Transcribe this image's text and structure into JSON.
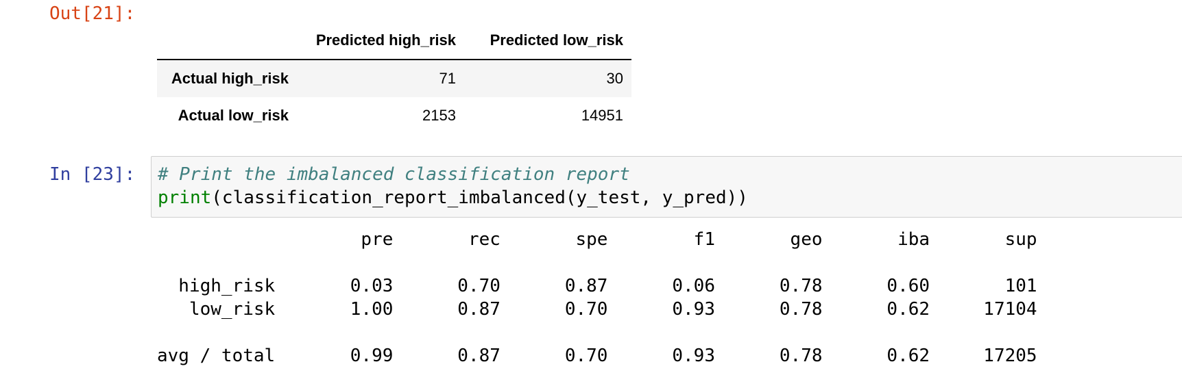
{
  "out_cell": {
    "prompt": "Out[21]:",
    "table": {
      "columns": [
        "Predicted high_risk",
        "Predicted low_risk"
      ],
      "rows": [
        {
          "label": "Actual high_risk",
          "values": [
            "71",
            "30"
          ]
        },
        {
          "label": "Actual low_risk",
          "values": [
            "2153",
            "14951"
          ]
        }
      ]
    }
  },
  "in_cell": {
    "prompt": "In [23]:",
    "code": {
      "comment": "# Print the imbalanced classification report",
      "func": "print",
      "rest": "(classification_report_imbalanced(y_test, y_pred))"
    }
  },
  "report": {
    "header": "                   pre       rec       spe        f1       geo       iba       sup",
    "row_high": "  high_risk       0.03      0.70      0.87      0.06      0.78      0.60       101",
    "row_low": "   low_risk       1.00      0.87      0.70      0.93      0.78      0.62     17104",
    "row_total": "avg / total       0.99      0.87      0.70      0.93      0.78      0.62     17205"
  }
}
